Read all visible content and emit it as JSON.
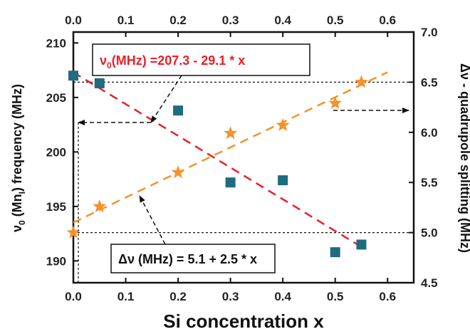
{
  "chart_data": {
    "type": "scatter",
    "xlabel": "Si concentration x",
    "xlim": [
      0.0,
      0.65
    ],
    "x_ticks": [
      "0.0",
      "0.1",
      "0.2",
      "0.3",
      "0.4",
      "0.5",
      "0.6"
    ],
    "x_tick_values": [
      0.0,
      0.1,
      0.2,
      0.3,
      0.4,
      0.5,
      0.6
    ],
    "ylabel_left": {
      "pre": "ν",
      "sub": "0",
      "mid": " (Mn",
      "sub2": "I",
      "post": ")   frequency (MHz)"
    },
    "ylim_left": [
      188,
      211
    ],
    "y_ticks_left": [
      "190",
      "195",
      "200",
      "205",
      "210"
    ],
    "y_tick_values_left": [
      190,
      195,
      200,
      205,
      210
    ],
    "ylabel_right": "Δν - quadrupole splitting  (MHz)",
    "ylim_right": [
      4.5,
      7.0
    ],
    "y_ticks_right": [
      "4.5",
      "5.0",
      "5.5",
      "6.0",
      "6.5",
      "7.0"
    ],
    "y_tick_values_right": [
      4.5,
      5.0,
      5.5,
      6.0,
      6.5,
      7.0
    ],
    "series": [
      {
        "axis": "left",
        "marker": "square",
        "color": "#1f6b80",
        "points": [
          [
            0.0,
            207.0
          ],
          [
            0.05,
            206.3
          ],
          [
            0.2,
            203.8
          ],
          [
            0.3,
            197.2
          ],
          [
            0.4,
            197.4
          ],
          [
            0.5,
            190.8
          ],
          [
            0.55,
            191.5
          ]
        ]
      },
      {
        "axis": "right",
        "marker": "star",
        "color": "#f5922b",
        "points": [
          [
            0.0,
            5.0
          ],
          [
            0.05,
            5.26
          ],
          [
            0.2,
            5.6
          ],
          [
            0.3,
            5.99
          ],
          [
            0.4,
            6.07
          ],
          [
            0.5,
            6.29
          ],
          [
            0.55,
            6.5
          ]
        ]
      }
    ],
    "fits": [
      {
        "axis": "left",
        "color": "#e8202a",
        "dash": "dashed",
        "intercept": 207.3,
        "slope": -29.1,
        "x_range": [
          0.0,
          0.55
        ]
      },
      {
        "axis": "right",
        "color": "#f5922b",
        "dash": "dashed",
        "intercept": 5.1,
        "slope": 2.5,
        "x_range": [
          0.0,
          0.6
        ]
      }
    ],
    "reference_lines": [
      {
        "axis": "right",
        "y": 6.5
      },
      {
        "axis": "right",
        "y": 5.0
      }
    ],
    "annotations": {
      "red_equation": {
        "pre": "ν",
        "sub": "0",
        "post": "(MHz) =207.3 - 29.1 * x",
        "color": "#e8202a"
      },
      "black_equation": {
        "text": "Δν (MHz) = 5.1 + 2.5 * x",
        "color": "#111111"
      }
    }
  }
}
